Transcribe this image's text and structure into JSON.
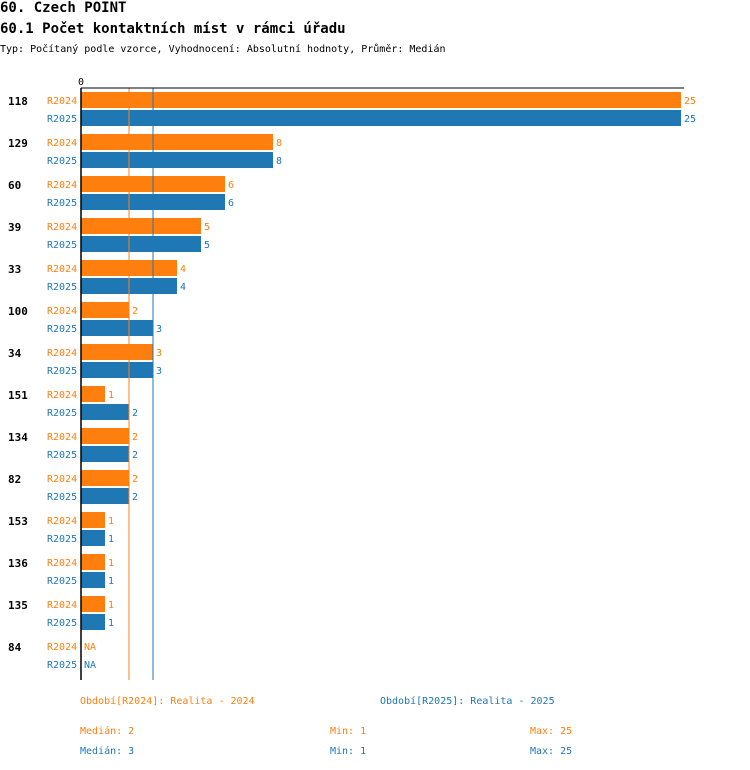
{
  "heading": {
    "title": "60. Czech POINT",
    "subtitle": "60.1 Počet kontaktních míst v rámci úřadu",
    "type_line": "Typ: Počítaný podle vzorce, Vyhodnocení: Absolutní hodnoty, Průměr: Medián"
  },
  "chart_data": {
    "type": "bar",
    "orientation": "horizontal",
    "categories": [
      "118",
      "129",
      "60",
      "39",
      "33",
      "100",
      "34",
      "151",
      "134",
      "82",
      "153",
      "136",
      "135",
      "84"
    ],
    "series": [
      {
        "name": "R2024",
        "color": "#ff7f0e",
        "values": [
          25,
          8,
          6,
          5,
          4,
          2,
          3,
          1,
          2,
          2,
          1,
          1,
          1,
          null
        ]
      },
      {
        "name": "R2025",
        "color": "#1f77b4",
        "values": [
          25,
          8,
          6,
          5,
          4,
          3,
          3,
          2,
          2,
          2,
          1,
          1,
          1,
          null
        ]
      }
    ],
    "missing_label": "NA",
    "xlim": [
      0,
      25
    ],
    "axis_zero_label": "0",
    "median_lines": [
      {
        "series": "R2024",
        "value": 2
      },
      {
        "series": "R2025",
        "value": 3
      }
    ]
  },
  "legend": {
    "period_2024": "Období[R2024]: Realita - 2024",
    "period_2025": "Období[R2025]: Realita - 2025",
    "stats_2024": {
      "median": "Medián: 2",
      "min": "Min: 1",
      "max": "Max: 25"
    },
    "stats_2025": {
      "median": "Medián: 3",
      "min": "Min: 1",
      "max": "Max: 25"
    }
  }
}
